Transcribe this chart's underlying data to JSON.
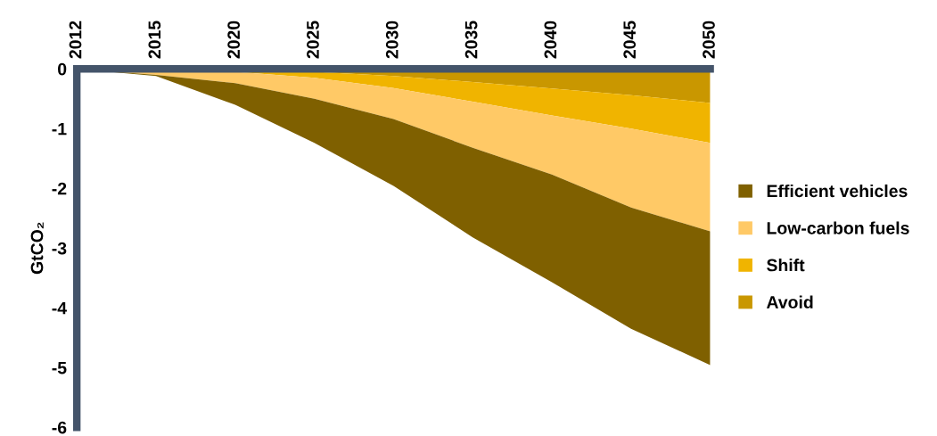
{
  "chart_data": {
    "type": "area",
    "stacked": true,
    "ylabel": "GtCO₂",
    "categories": [
      "2012",
      "2015",
      "2020",
      "2025",
      "2030",
      "2035",
      "2040",
      "2045",
      "2050"
    ],
    "series": [
      {
        "name": "Avoid",
        "color": "#c99700",
        "values": [
          0,
          0,
          -0.02,
          -0.05,
          -0.12,
          -0.22,
          -0.33,
          -0.44,
          -0.57
        ]
      },
      {
        "name": "Shift",
        "color": "#f0b400",
        "values": [
          0,
          -0.01,
          -0.03,
          -0.1,
          -0.2,
          -0.33,
          -0.45,
          -0.56,
          -0.67
        ]
      },
      {
        "name": "Low-carbon fuels",
        "color": "#ffc966",
        "values": [
          0,
          -0.09,
          -0.19,
          -0.35,
          -0.52,
          -0.77,
          -0.99,
          -1.32,
          -1.48
        ]
      },
      {
        "name": "Efficient vehicles",
        "color": "#7f6000",
        "values": [
          0,
          -0.02,
          -0.36,
          -0.74,
          -1.12,
          -1.5,
          -1.8,
          -2.03,
          -2.24
        ]
      }
    ],
    "ylim": [
      -6,
      0
    ],
    "yticks": [
      0,
      {
        "value": -1,
        "label": "-1"
      },
      {
        "value": -2,
        "label": "-2"
      },
      {
        "value": -3,
        "label": "-3"
      },
      {
        "value": -4,
        "label": "-4"
      },
      {
        "value": -5,
        "label": "-5"
      },
      {
        "value": -6,
        "label": "-6"
      }
    ],
    "grid": false,
    "legend": "right"
  }
}
